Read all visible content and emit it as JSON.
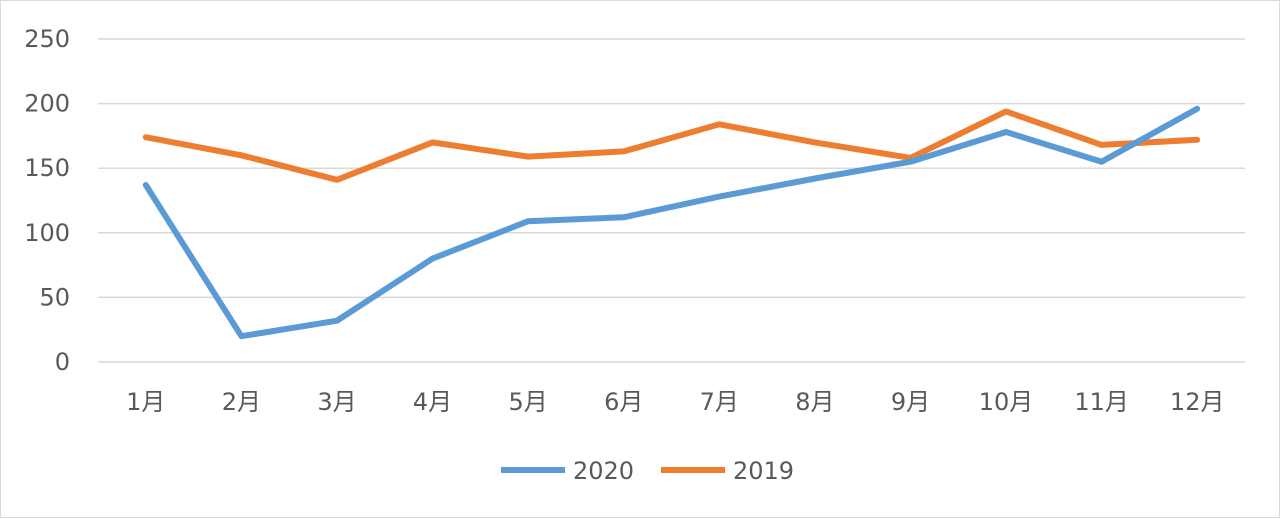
{
  "chart_data": {
    "type": "line",
    "title": "",
    "xlabel": "",
    "ylabel": "",
    "categories": [
      "1月",
      "2月",
      "3月",
      "4月",
      "5月",
      "6月",
      "7月",
      "8月",
      "9月",
      "10月",
      "11月",
      "12月"
    ],
    "ylim": [
      0,
      250
    ],
    "yticks": [
      0,
      50,
      100,
      150,
      200,
      250
    ],
    "grid": true,
    "legend_position": "bottom",
    "series": [
      {
        "name": "2020",
        "color": "#5b9bd5",
        "values": [
          137,
          20,
          32,
          80,
          109,
          112,
          128,
          142,
          155,
          178,
          155,
          196
        ]
      },
      {
        "name": "2019",
        "color": "#ed7d31",
        "values": [
          174,
          160,
          141,
          170,
          159,
          163,
          184,
          170,
          158,
          194,
          168,
          172
        ]
      }
    ]
  }
}
